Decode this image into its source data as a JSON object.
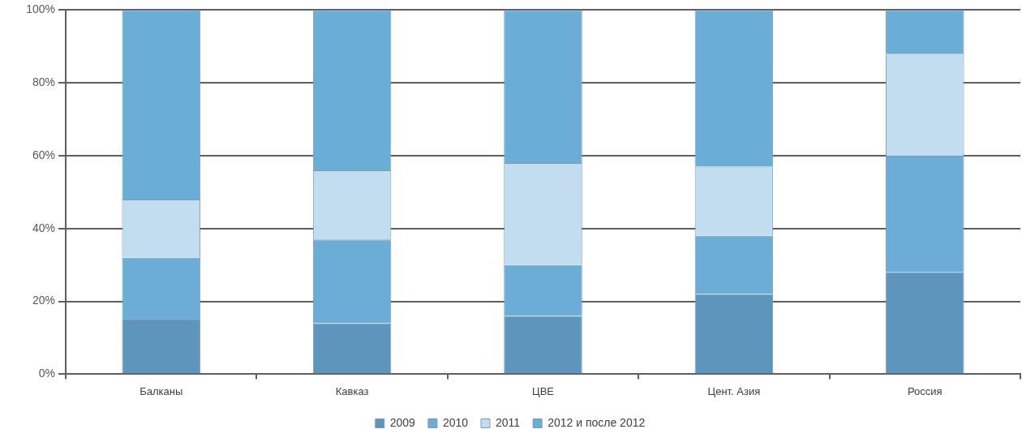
{
  "chart_data": {
    "type": "bar",
    "stacked": true,
    "categories": [
      "Балканы",
      "Кавказ",
      "ЦВЕ",
      "Цент. Азия",
      "Россия"
    ],
    "series": [
      {
        "name": "2009",
        "color": "#5d95bc",
        "values": [
          15,
          14,
          16,
          22,
          28
        ]
      },
      {
        "name": "2010",
        "color": "#6badd7",
        "values": [
          17,
          23,
          14,
          16,
          32
        ]
      },
      {
        "name": "2011",
        "color": "#c1ddef",
        "values": [
          16,
          19,
          28,
          19,
          28
        ]
      },
      {
        "name": "2012 и после 2012",
        "color": "#6aaed8",
        "values": [
          52,
          44,
          42,
          43,
          12
        ]
      }
    ],
    "ylim": [
      0,
      100
    ],
    "yticks": [
      {
        "value": 0,
        "label": "0%"
      },
      {
        "value": 20,
        "label": "20%"
      },
      {
        "value": 40,
        "label": "40%"
      },
      {
        "value": 60,
        "label": "60%"
      },
      {
        "value": 80,
        "label": "80%"
      },
      {
        "value": 100,
        "label": "100%"
      }
    ],
    "grid": "y",
    "legend": "bottom"
  }
}
